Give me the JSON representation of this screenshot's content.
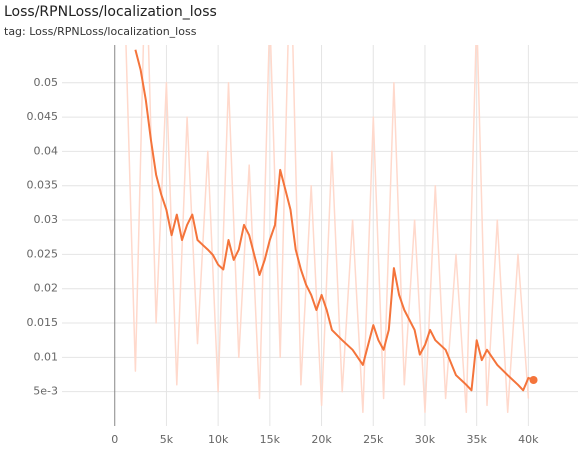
{
  "chart_data": {
    "type": "line",
    "title": "Loss/RPNLoss/localization_loss",
    "subtitle": "tag: Loss/RPNLoss/localization_loss",
    "xlim": [
      -5100,
      44800
    ],
    "ylim": [
      0,
      0.0555
    ],
    "xticks": [
      0,
      {
        "value": 5000,
        "label": "5k"
      },
      {
        "value": 10000,
        "label": "10k"
      },
      {
        "value": 15000,
        "label": "15k"
      },
      {
        "value": 20000,
        "label": "20k"
      },
      {
        "value": 25000,
        "label": "25k"
      },
      {
        "value": 30000,
        "label": "30k"
      },
      {
        "value": 35000,
        "label": "35k"
      },
      {
        "value": 40000,
        "label": "40k"
      }
    ],
    "yticks": [
      {
        "value": 0.005,
        "label": "5e-3"
      },
      0.01,
      0.015,
      0.02,
      0.025,
      0.03,
      0.035,
      0.04,
      0.045,
      0.05
    ],
    "grid": true,
    "series": [
      {
        "color": "#ffd9cc",
        "x": [
          1000,
          2000,
          3000,
          4000,
          5000,
          6000,
          7000,
          8000,
          9000,
          10000,
          11000,
          12000,
          13000,
          14000,
          15000,
          16000,
          17000,
          18000,
          19000,
          20000,
          21000,
          22000,
          23000,
          24000,
          25000,
          26000,
          27000,
          28000,
          29000,
          30000,
          31000,
          32000,
          33000,
          34000,
          35000,
          36000,
          37000,
          38000,
          39000,
          40000
        ],
        "values": [
          0.06,
          0.008,
          0.07,
          0.015,
          0.05,
          0.006,
          0.045,
          0.012,
          0.04,
          0.005,
          0.05,
          0.01,
          0.038,
          0.004,
          0.06,
          0.01,
          0.07,
          0.006,
          0.035,
          0.003,
          0.04,
          0.005,
          0.03,
          0.002,
          0.045,
          0.004,
          0.05,
          0.006,
          0.03,
          0.002,
          0.035,
          0.004,
          0.025,
          0.002,
          0.06,
          0.003,
          0.03,
          0.002,
          0.025,
          0.004
        ]
      },
      {
        "color": "#f4743b",
        "x": [
          2000,
          2500,
          3000,
          3500,
          4000,
          4500,
          5000,
          5500,
          6000,
          6500,
          7000,
          7500,
          8000,
          8500,
          9000,
          9500,
          10000,
          10500,
          11000,
          11500,
          12000,
          12500,
          13000,
          13500,
          14000,
          14500,
          15000,
          15500,
          16000,
          16500,
          17000,
          17500,
          18000,
          18500,
          19000,
          19500,
          20000,
          20500,
          21000,
          22000,
          23000,
          24000,
          25000,
          25500,
          26000,
          26500,
          27000,
          27500,
          28000,
          29000,
          29500,
          30000,
          30500,
          31000,
          32000,
          33000,
          34000,
          34500,
          35000,
          35500,
          36000,
          37000,
          38000,
          39000,
          39500,
          40000,
          40500
        ],
        "values": [
          0.0548,
          0.0519,
          0.0475,
          0.0417,
          0.0366,
          0.0337,
          0.0315,
          0.0278,
          0.0308,
          0.0271,
          0.0293,
          0.0308,
          0.0271,
          0.0264,
          0.0257,
          0.0249,
          0.0235,
          0.0228,
          0.0271,
          0.0242,
          0.0257,
          0.0293,
          0.0278,
          0.0249,
          0.022,
          0.0242,
          0.0271,
          0.0293,
          0.0373,
          0.0344,
          0.0315,
          0.0257,
          0.0228,
          0.0206,
          0.0191,
          0.0169,
          0.0191,
          0.0169,
          0.014,
          0.0125,
          0.0111,
          0.0089,
          0.0147,
          0.0125,
          0.0111,
          0.014,
          0.023,
          0.0191,
          0.0169,
          0.014,
          0.0104,
          0.0118,
          0.014,
          0.0125,
          0.0111,
          0.0074,
          0.006,
          0.0052,
          0.0125,
          0.0096,
          0.0111,
          0.0089,
          0.0074,
          0.006,
          0.0052,
          0.007,
          0.0067
        ]
      }
    ]
  }
}
